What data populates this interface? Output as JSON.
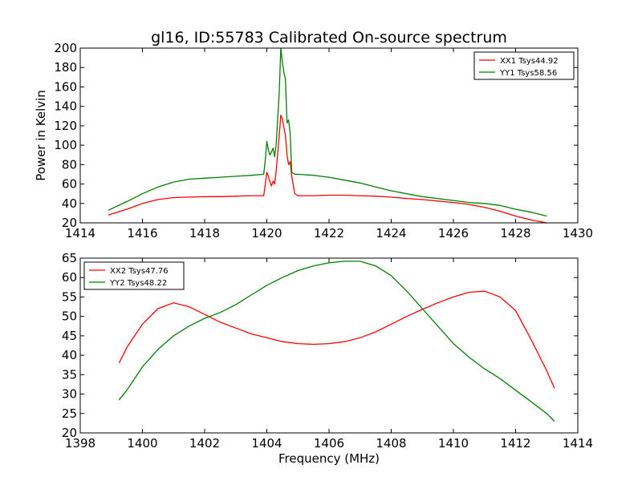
{
  "title": "gl16, ID:55783 Calibrated On-source spectrum",
  "chart_data": [
    {
      "type": "line",
      "title": "gl16, ID:55783 Calibrated On-source spectrum",
      "xlabel": "",
      "ylabel": "Power in Kelvin",
      "xlim": [
        1414,
        1430
      ],
      "ylim": [
        20,
        200
      ],
      "xticks": [
        "1414",
        "1416",
        "1418",
        "1420",
        "1422",
        "1424",
        "1426",
        "1428",
        "1430"
      ],
      "yticks": [
        "20",
        "40",
        "60",
        "80",
        "100",
        "120",
        "140",
        "160",
        "180",
        "200"
      ],
      "legend_position": "top-right",
      "series": [
        {
          "name": "XX1 Tsys44.92",
          "color": "#ff0000",
          "x": [
            1414.9,
            1415.5,
            1416.0,
            1416.5,
            1417.0,
            1417.5,
            1418.0,
            1418.5,
            1419.0,
            1419.5,
            1419.9,
            1419.95,
            1420.0,
            1420.05,
            1420.1,
            1420.15,
            1420.2,
            1420.25,
            1420.3,
            1420.4,
            1420.45,
            1420.5,
            1420.55,
            1420.6,
            1420.65,
            1420.7,
            1420.75,
            1420.8,
            1420.9,
            1421.0,
            1421.5,
            1422.0,
            1422.5,
            1423.0,
            1423.5,
            1424.0,
            1424.5,
            1425.0,
            1425.5,
            1426.0,
            1426.5,
            1427.0,
            1427.5,
            1428.0,
            1428.5,
            1429.0
          ],
          "y": [
            28,
            34,
            40,
            44,
            46,
            46.5,
            47,
            47,
            47.5,
            48,
            48,
            60,
            72,
            68,
            62,
            58,
            63,
            60,
            73,
            110,
            131,
            127,
            118,
            110,
            90,
            80,
            83,
            68,
            50,
            48,
            48,
            48.5,
            48.5,
            48,
            47.5,
            46.5,
            45,
            44,
            42.5,
            41,
            39,
            36,
            32,
            27,
            23,
            20
          ]
        },
        {
          "name": "YY1 Tsys58.56",
          "color": "#008000",
          "x": [
            1414.9,
            1415.5,
            1416.0,
            1416.5,
            1417.0,
            1417.5,
            1418.0,
            1418.5,
            1419.0,
            1419.5,
            1419.9,
            1419.95,
            1420.0,
            1420.05,
            1420.1,
            1420.15,
            1420.2,
            1420.25,
            1420.3,
            1420.4,
            1420.45,
            1420.5,
            1420.55,
            1420.6,
            1420.65,
            1420.7,
            1420.75,
            1420.8,
            1420.9,
            1421.0,
            1421.5,
            1422.0,
            1422.5,
            1423.0,
            1423.5,
            1424.0,
            1424.5,
            1425.0,
            1425.5,
            1426.0,
            1426.5,
            1427.0,
            1427.5,
            1428.0,
            1428.5,
            1429.0
          ],
          "y": [
            33,
            42,
            50,
            57,
            62,
            65,
            66,
            67,
            68,
            69,
            70,
            85,
            104,
            95,
            90,
            93,
            97,
            88,
            100,
            155,
            200,
            185,
            175,
            168,
            123,
            126,
            112,
            72,
            70,
            70,
            69,
            67,
            64,
            61,
            57,
            53,
            50,
            47,
            45,
            43,
            41,
            40,
            38,
            34,
            31,
            27
          ]
        }
      ]
    },
    {
      "type": "line",
      "title": "",
      "xlabel": "Frequency (MHz)",
      "ylabel": "",
      "xlim": [
        1398,
        1414
      ],
      "ylim": [
        20,
        65
      ],
      "xticks": [
        "1398",
        "1400",
        "1402",
        "1404",
        "1406",
        "1408",
        "1410",
        "1412",
        "1414"
      ],
      "yticks": [
        "20",
        "25",
        "30",
        "35",
        "40",
        "45",
        "50",
        "55",
        "60",
        "65"
      ],
      "legend_position": "top-left",
      "series": [
        {
          "name": "XX2 Tsys47.76",
          "color": "#ff0000",
          "x": [
            1399.25,
            1399.5,
            1400.0,
            1400.5,
            1401.0,
            1401.5,
            1402.0,
            1402.5,
            1403.0,
            1403.5,
            1404.0,
            1404.5,
            1405.0,
            1405.5,
            1406.0,
            1406.5,
            1407.0,
            1407.5,
            1408.0,
            1408.5,
            1409.0,
            1409.5,
            1410.0,
            1410.5,
            1411.0,
            1411.5,
            1412.0,
            1412.5,
            1413.0,
            1413.25
          ],
          "y": [
            38,
            42,
            48,
            52,
            53.5,
            52.5,
            50.5,
            48.5,
            47,
            45.5,
            44.5,
            43.5,
            43,
            42.8,
            43,
            43.5,
            44.5,
            46,
            48,
            50,
            51.8,
            53.5,
            55,
            56.2,
            56.5,
            55,
            51.5,
            44,
            36,
            31.5
          ]
        },
        {
          "name": "YY2 Tsys48.22",
          "color": "#008000",
          "x": [
            1399.25,
            1399.5,
            1400.0,
            1400.5,
            1401.0,
            1401.5,
            1402.0,
            1402.5,
            1403.0,
            1403.5,
            1404.0,
            1404.5,
            1405.0,
            1405.5,
            1406.0,
            1406.5,
            1407.0,
            1407.5,
            1408.0,
            1408.5,
            1409.0,
            1409.5,
            1410.0,
            1410.5,
            1411.0,
            1411.5,
            1412.0,
            1412.5,
            1413.0,
            1413.25
          ],
          "y": [
            28.5,
            31,
            37,
            41.5,
            45,
            47.5,
            49.5,
            51,
            53,
            55.5,
            58,
            60,
            61.8,
            63,
            63.8,
            64.2,
            64.2,
            63,
            60.5,
            56.5,
            52,
            47.5,
            43,
            39.5,
            36.5,
            34,
            31,
            28,
            25,
            23
          ]
        }
      ]
    }
  ]
}
